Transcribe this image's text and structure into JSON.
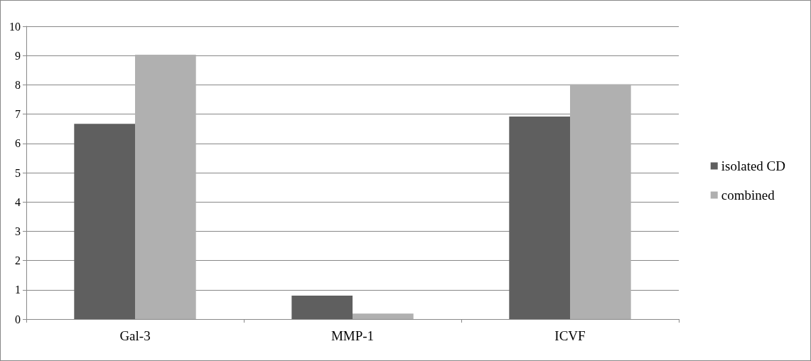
{
  "chart_data": {
    "type": "bar",
    "categories": [
      "Gal-3",
      "MMP-1",
      "ICVF"
    ],
    "series": [
      {
        "name": "isolated CD",
        "color": "#5f5f5f",
        "values": [
          6.67,
          0.8,
          6.92
        ]
      },
      {
        "name": "combined",
        "color": "#b0b0b0",
        "values": [
          9.03,
          0.19,
          8.02
        ]
      }
    ],
    "ylim": [
      0,
      10
    ],
    "yticks": [
      0,
      1,
      2,
      3,
      4,
      5,
      6,
      7,
      8,
      9,
      10
    ],
    "grid": "y",
    "legend": "right"
  }
}
